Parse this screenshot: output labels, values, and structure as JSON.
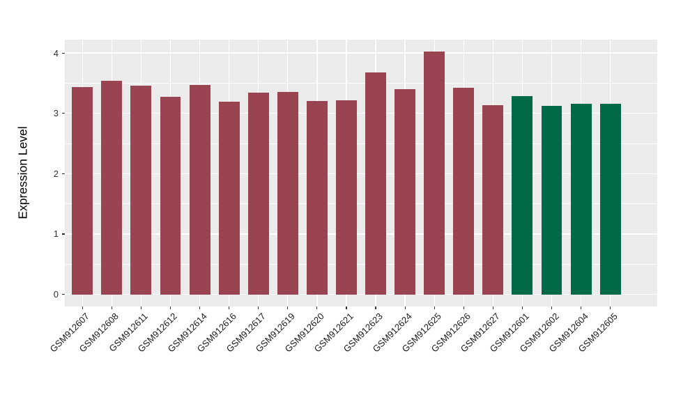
{
  "figure": {
    "background": "#FFFFFF"
  },
  "chart_data": {
    "type": "bar",
    "title": "",
    "xlabel": "",
    "ylabel": "Expression Level",
    "categories": [
      "GSM912607",
      "GSM912608",
      "GSM912611",
      "GSM912612",
      "GSM912614",
      "GSM912616",
      "GSM912617",
      "GSM912619",
      "GSM912620",
      "GSM912621",
      "GSM912623",
      "GSM912624",
      "GSM912625",
      "GSM912626",
      "GSM912627",
      "GSM912601",
      "GSM912602",
      "GSM912604",
      "GSM912605"
    ],
    "values": [
      3.44,
      3.54,
      3.46,
      3.28,
      3.47,
      3.19,
      3.34,
      3.36,
      3.2,
      3.22,
      3.68,
      3.4,
      4.02,
      3.43,
      3.14,
      3.29,
      3.12,
      3.16,
      3.16
    ],
    "groups": [
      "red",
      "red",
      "red",
      "red",
      "red",
      "red",
      "red",
      "red",
      "red",
      "red",
      "red",
      "red",
      "red",
      "red",
      "red",
      "green",
      "green",
      "green",
      "green"
    ],
    "group_colors": {
      "red": "#9B4451",
      "green": "#006947"
    },
    "yticks": [
      0,
      1,
      2,
      3,
      4
    ],
    "y_minor_ticks": [
      0.5,
      1.5,
      2.5,
      3.5
    ],
    "ylim": [
      0,
      4.02
    ],
    "y_expanded": [
      -0.201,
      4.221
    ],
    "grid": true,
    "legend": "none",
    "panel_bg": "#EBEBEB",
    "grid_color": "#FFFFFF",
    "tick_color": "#333333"
  }
}
